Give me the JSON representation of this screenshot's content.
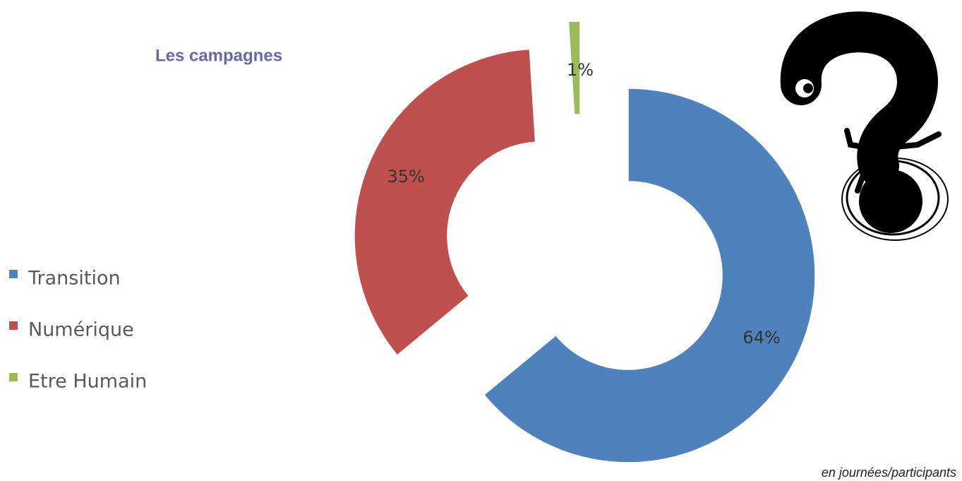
{
  "chart_data": {
    "type": "donut",
    "title": "Les campagnes",
    "note": "en journées/participants",
    "categories": [
      "Transition",
      "Numérique",
      "Etre Humain"
    ],
    "values": [
      64,
      35,
      1
    ],
    "value_labels": [
      "64%",
      "35%",
      "1%"
    ],
    "colors": [
      "#4f81bd",
      "#c0504d",
      "#9bbb59"
    ],
    "legend": "left"
  }
}
